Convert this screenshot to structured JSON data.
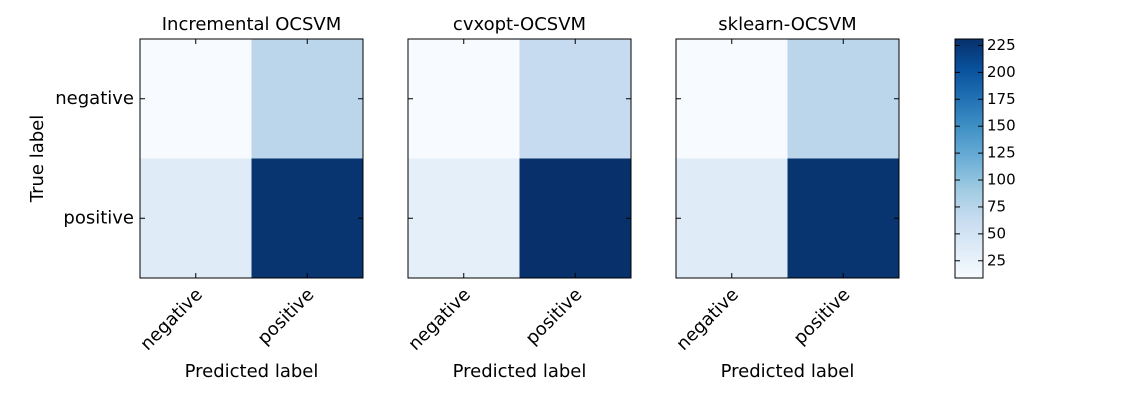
{
  "chart_data": [
    {
      "type": "heatmap",
      "title": "Incremental OCSVM",
      "x_categories": [
        "negative",
        "positive"
      ],
      "y_categories": [
        "negative",
        "positive"
      ],
      "values": [
        [
          9,
          72
        ],
        [
          36,
          228
        ]
      ],
      "xlabel": "Predicted label",
      "ylabel": "True label"
    },
    {
      "type": "heatmap",
      "title": "cvxopt-OCSVM",
      "x_categories": [
        "negative",
        "positive"
      ],
      "values": [
        [
          9,
          64
        ],
        [
          29,
          231
        ]
      ],
      "xlabel": "Predicted label"
    },
    {
      "type": "heatmap",
      "title": "sklearn-OCSVM",
      "x_categories": [
        "negative",
        "positive"
      ],
      "values": [
        [
          9,
          72
        ],
        [
          36,
          228
        ]
      ],
      "xlabel": "Predicted label"
    }
  ],
  "colorbar": {
    "colormap": "Blues",
    "lim": [
      9,
      231
    ],
    "ticks": [
      25,
      50,
      75,
      100,
      125,
      150,
      175,
      200,
      225
    ]
  }
}
